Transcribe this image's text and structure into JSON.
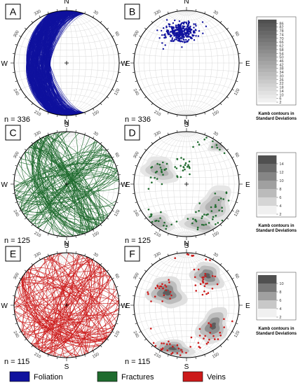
{
  "legend_keys": [
    {
      "label": "Foliation",
      "color": "#10129e"
    },
    {
      "label": "Fractures",
      "color": "#1f6b2e"
    },
    {
      "label": "Veins",
      "color": "#cc1a1a"
    }
  ],
  "cardinals": [
    "N",
    "E",
    "S",
    "W"
  ],
  "azimuth_labels": [
    {
      "deg": 30,
      "text": "30"
    },
    {
      "deg": 60,
      "text": "60"
    },
    {
      "deg": 120,
      "text": "120"
    },
    {
      "deg": 150,
      "text": "150"
    },
    {
      "deg": 210,
      "text": "210"
    },
    {
      "deg": 240,
      "text": "240"
    },
    {
      "deg": 300,
      "text": "300"
    },
    {
      "deg": 330,
      "text": "330"
    }
  ],
  "rows": [
    {
      "category": "Foliation",
      "color": "#10129e",
      "great_circles": {
        "label": "A",
        "count_text": "n = 336",
        "n": 336,
        "dip_dir_range": [
          240,
          300
        ],
        "dip_range": [
          20,
          70
        ]
      },
      "poles": {
        "label": "B",
        "count_text": "n = 336",
        "n": 336,
        "mean_trend": 350,
        "mean_plunge": 40,
        "spread": 12,
        "contours": false
      },
      "contour_scale": {
        "ticks": [
          "86",
          "82",
          "78",
          "74",
          "70",
          "66",
          "62",
          "58",
          "54",
          "50",
          "46",
          "42",
          "38",
          "34",
          "30",
          "26",
          "22",
          "18",
          "14",
          "10",
          "6",
          "2"
        ],
        "caption": [
          "Kamb contours in",
          "Standard Deviations"
        ]
      }
    },
    {
      "category": "Fractures",
      "color": "#1f6b2e",
      "great_circles": {
        "label": "C",
        "count_text": "n = 125",
        "n": 125
      },
      "poles": {
        "label": "D",
        "count_text": "n = 125",
        "n": 125,
        "contours": true
      },
      "contour_scale": {
        "ticks": [
          "14",
          "12",
          "10",
          "8",
          "6",
          "4",
          "2"
        ],
        "caption": [
          "Kamb contours in",
          "Standard Deviations"
        ]
      }
    },
    {
      "category": "Veins",
      "color": "#cc1a1a",
      "great_circles": {
        "label": "E",
        "count_text": "n = 115",
        "n": 115
      },
      "poles": {
        "label": "F",
        "count_text": "n = 115",
        "n": 115,
        "contours": true
      },
      "contour_scale": {
        "ticks": [
          "10",
          "8",
          "6",
          "4",
          "2"
        ],
        "caption": [
          "Kamb contours in",
          "Standard Deviations"
        ]
      }
    }
  ],
  "chart_data": [
    {
      "type": "stereonet-great-circles",
      "panel": "A",
      "series": "Foliation",
      "n": 336
    },
    {
      "type": "stereonet-poles",
      "panel": "B",
      "series": "Foliation",
      "n": 336,
      "colorbar_range": [
        2,
        86
      ]
    },
    {
      "type": "stereonet-great-circles",
      "panel": "C",
      "series": "Fractures",
      "n": 125
    },
    {
      "type": "stereonet-poles-contoured",
      "panel": "D",
      "series": "Fractures",
      "n": 125,
      "colorbar_range": [
        2,
        14
      ]
    },
    {
      "type": "stereonet-great-circles",
      "panel": "E",
      "series": "Veins",
      "n": 115
    },
    {
      "type": "stereonet-poles-contoured",
      "panel": "F",
      "series": "Veins",
      "n": 115,
      "colorbar_range": [
        2,
        10
      ]
    }
  ]
}
